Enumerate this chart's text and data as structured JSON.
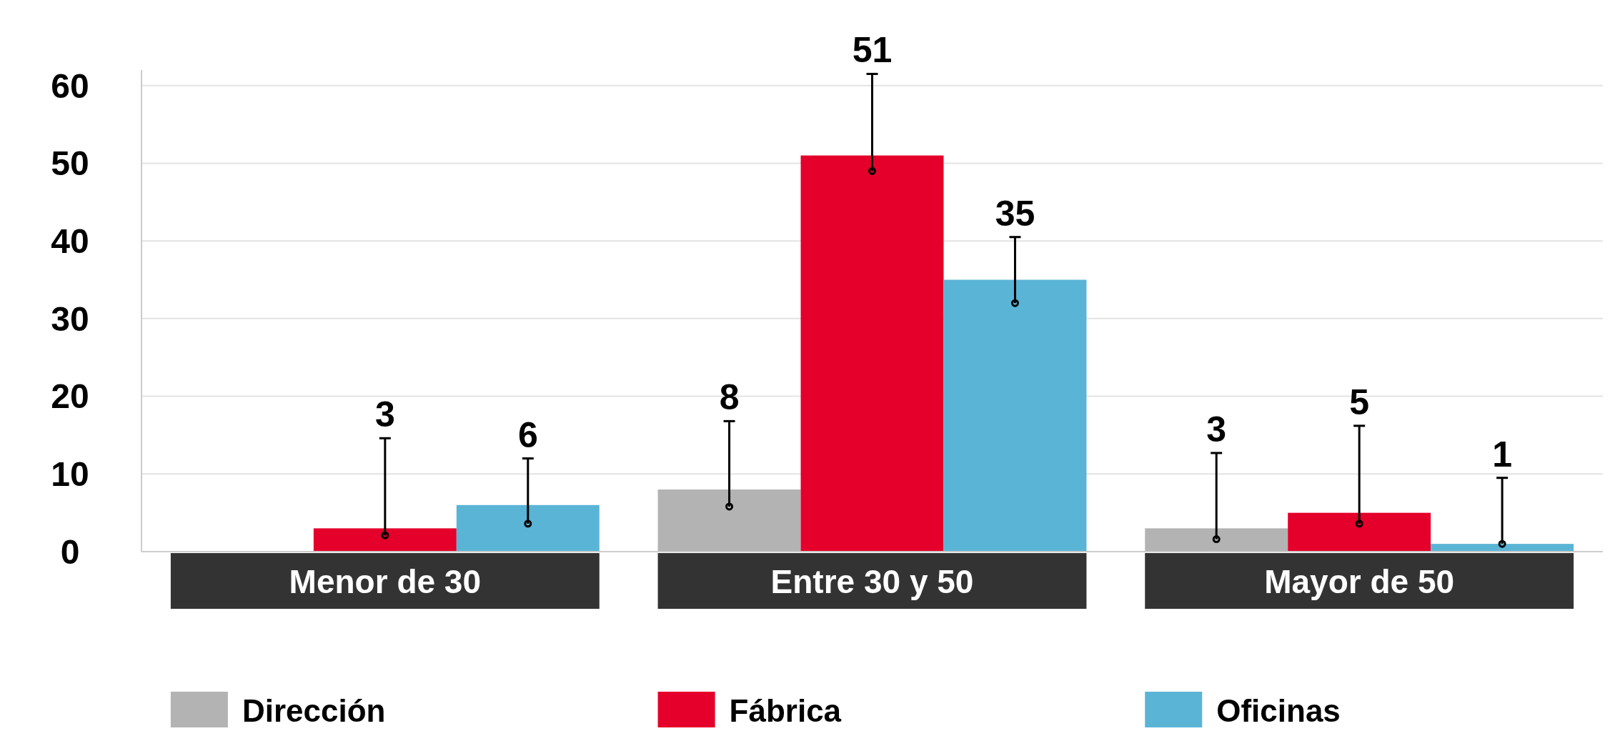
{
  "chart_data": {
    "type": "bar",
    "categories": [
      "Menor de 30",
      "Entre 30 y 50",
      "Mayor de 50"
    ],
    "series": [
      {
        "name": "Dirección",
        "color": "#b3b3b3",
        "values": [
          null,
          8,
          3
        ],
        "errors": [
          null,
          [
            5.8,
            16.8
          ],
          [
            1.6,
            12.7
          ]
        ]
      },
      {
        "name": "Fábrica",
        "color": "#e4002b",
        "values": [
          3,
          51,
          5
        ],
        "errors": [
          [
            2.1,
            14.6
          ],
          [
            49,
            61.5
          ],
          [
            3.6,
            16.2
          ]
        ]
      },
      {
        "name": "Oficinas",
        "color": "#5ab4d6",
        "values": [
          6,
          35,
          1
        ],
        "errors": [
          [
            3.6,
            12
          ],
          [
            32,
            40.5
          ],
          [
            1,
            9.5
          ]
        ]
      }
    ],
    "ylim": [
      0,
      62
    ],
    "yticks": [
      0,
      10,
      20,
      30,
      40,
      50,
      60
    ],
    "grid": "y",
    "legend": "bottom",
    "data_labels": true,
    "marker": "circle"
  }
}
